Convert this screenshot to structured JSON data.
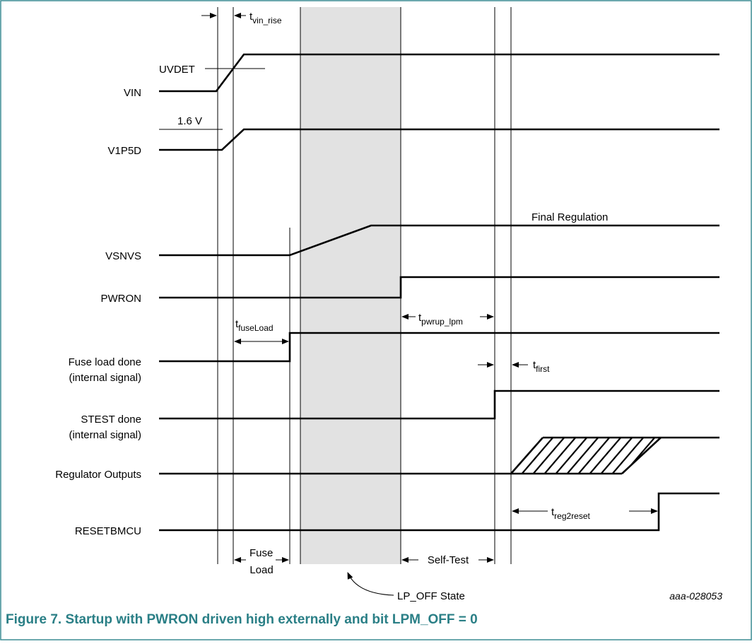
{
  "colors": {
    "border": "#3b8c93",
    "caption": "#2a7f86",
    "shade": "#e2e2e2"
  },
  "signals": {
    "vin": "VIN",
    "v1p5d": "V1P5D",
    "vsnvs": "VSNVS",
    "pwron": "PWRON",
    "fuse_load_done": "Fuse load done",
    "fuse_load_done_sub": "(internal signal)",
    "stest_done": "STEST done",
    "stest_done_sub": "(internal signal)",
    "regulator_outputs": "Regulator Outputs",
    "resetbmcu": "RESETBMCU"
  },
  "annotations": {
    "uvdet": "UVDET",
    "v16": "1.6 V",
    "final_regulation": "Final Regulation",
    "fuse": "Fuse",
    "load": "Load",
    "self_test": "Self-Test",
    "lp_off_state": "LP_OFF State"
  },
  "timings": {
    "t": "t",
    "vin_rise_sub": "vin_rise",
    "fuse_load_sub": "fuseLoad",
    "pwrup_lpm_sub": "pwrup_lpm",
    "first_sub": "first",
    "reg2reset_sub": "reg2reset"
  },
  "doc_id": "aaa-028053",
  "caption": "Figure 7.  Startup with PWRON driven high externally and bit LPM_OFF = 0"
}
